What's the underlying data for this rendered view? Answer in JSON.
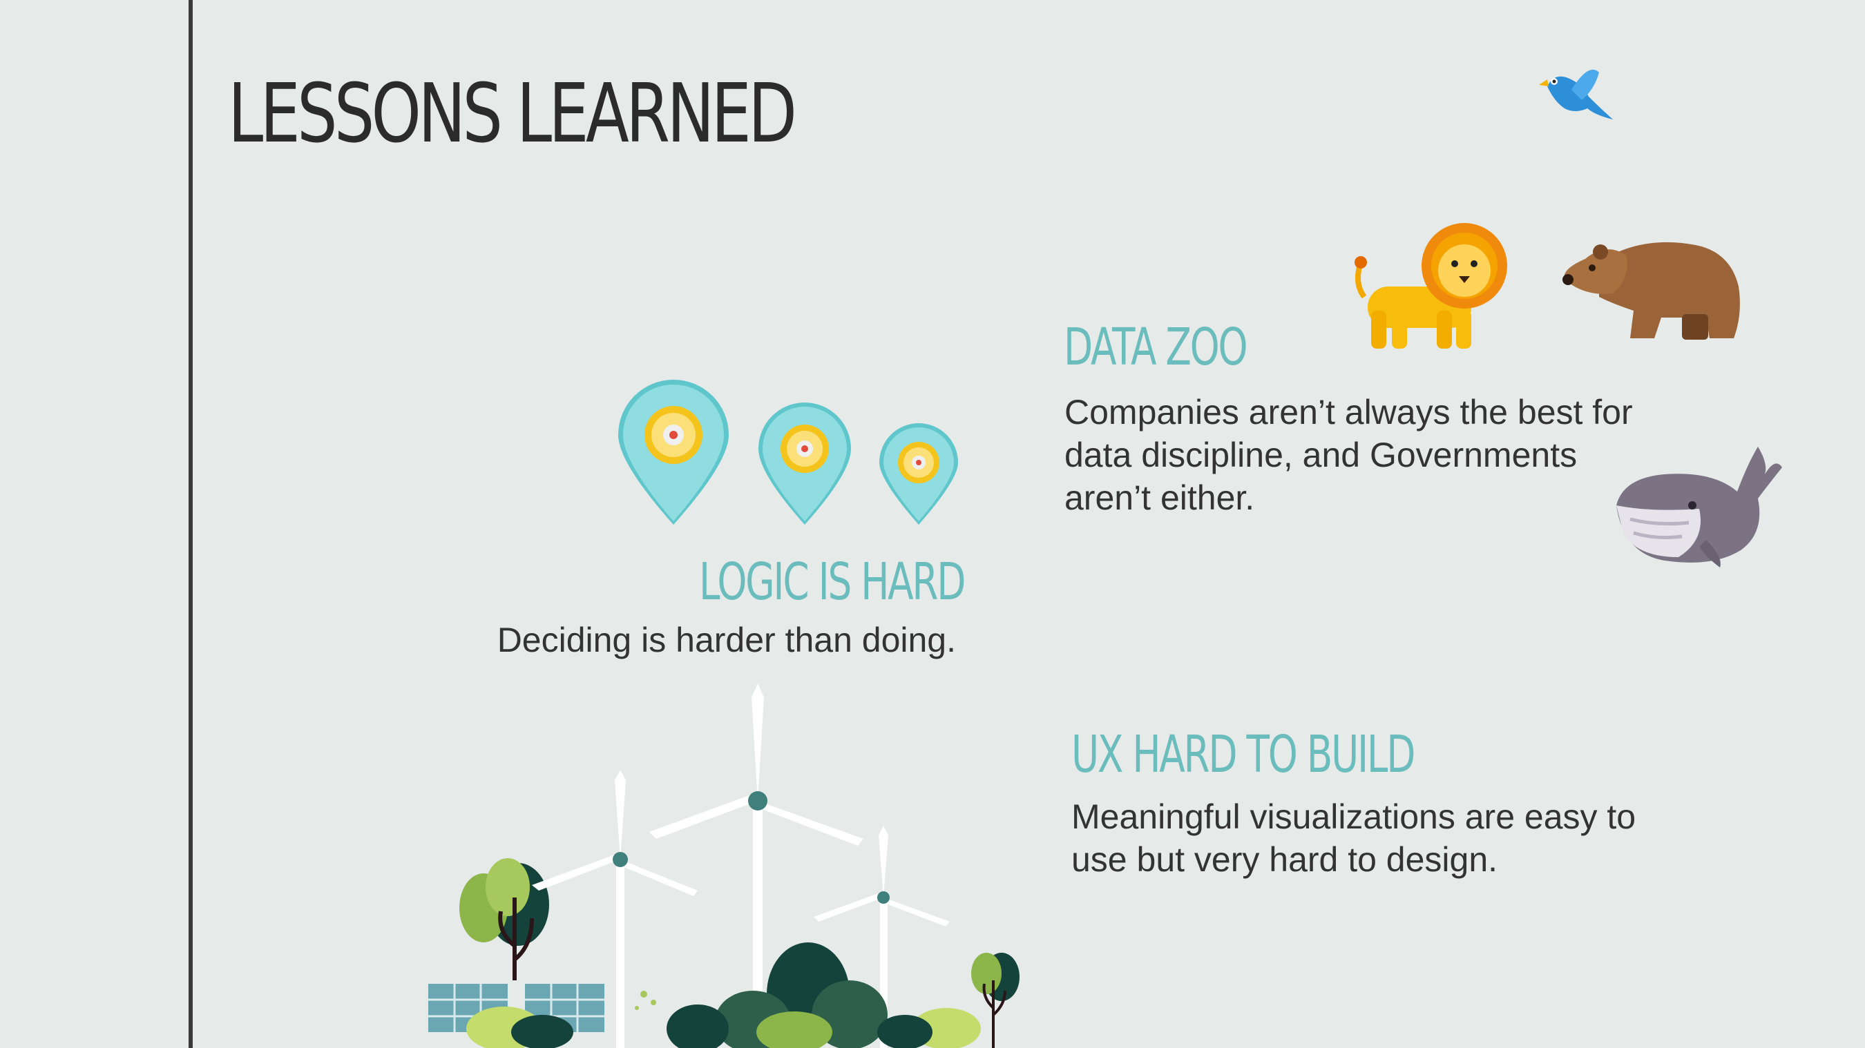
{
  "slide": {
    "title": "LESSONS LEARNED"
  },
  "sections": {
    "data_zoo": {
      "heading": "DATA ZOO",
      "body": "Companies aren’t always the best for data discipline, and Governments aren’t either."
    },
    "logic": {
      "heading": "LOGIC IS HARD",
      "body": "Deciding is harder than doing."
    },
    "ux": {
      "heading": "UX HARD TO BUILD",
      "body": "Meaningful visualizations are easy to use but very hard to design."
    }
  },
  "illustrations": {
    "zoo": [
      "bird-icon",
      "lion-icon",
      "bear-icon",
      "whale-icon"
    ],
    "logic": [
      "gear-pin-icon",
      "gear-pin-icon",
      "gear-pin-icon"
    ],
    "ux": [
      "wind-turbine-icon",
      "tree-icon",
      "solar-panel-icon",
      "bush-icon"
    ]
  },
  "colors": {
    "background": "#e6eae9",
    "accent": "#6bbcbc",
    "text": "#333333",
    "rule": "#3a3a3a"
  }
}
